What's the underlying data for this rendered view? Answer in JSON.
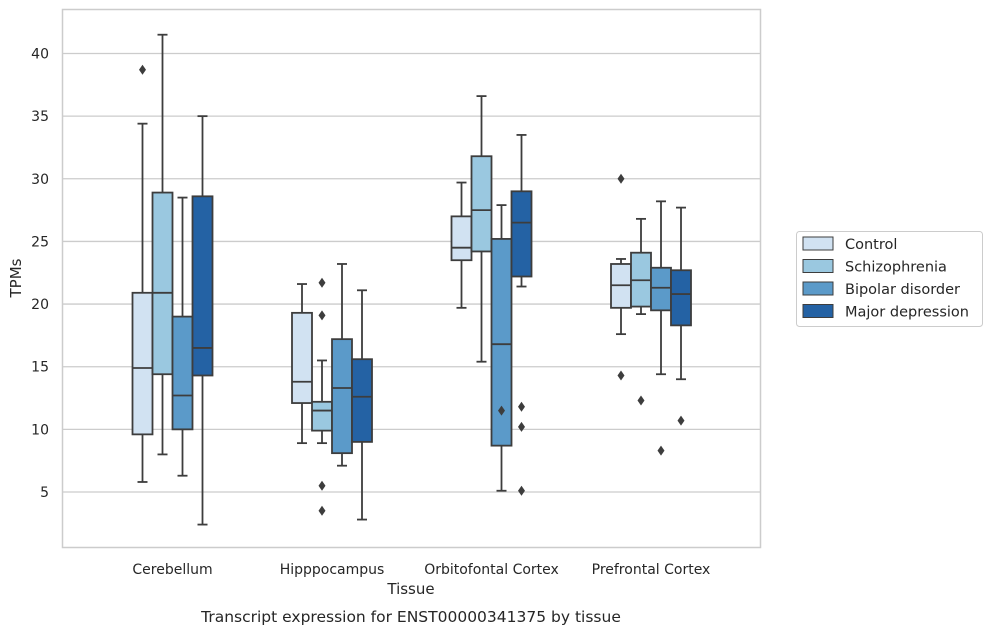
{
  "chart_data": {
    "type": "boxplot",
    "title": "",
    "caption": "Transcript expression for ENST00000341375 by tissue",
    "xlabel": "Tissue",
    "ylabel": "TPMs",
    "ylim": [
      0.5,
      43.5
    ],
    "yticks": [
      "5",
      "10",
      "15",
      "20",
      "25",
      "30",
      "35",
      "40"
    ],
    "grid": "horizontal",
    "legend_position": "right",
    "categories": [
      "Cerebellum",
      "Hipppocampus",
      "Orbitofontal Cortex",
      "Prefrontal Cortex"
    ],
    "series": [
      {
        "name": "Control",
        "color": "#d1e2f2",
        "boxes": [
          {
            "whislo": 5.8,
            "q1": 9.6,
            "med": 14.9,
            "q3": 20.9,
            "whishi": 34.4,
            "fliers": [
              38.7
            ]
          },
          {
            "whislo": 8.9,
            "q1": 12.1,
            "med": 13.8,
            "q3": 19.3,
            "whishi": 21.6,
            "fliers": []
          },
          {
            "whislo": 19.7,
            "q1": 23.5,
            "med": 24.5,
            "q3": 27.0,
            "whishi": 29.7,
            "fliers": []
          },
          {
            "whislo": 17.6,
            "q1": 19.7,
            "med": 21.5,
            "q3": 23.2,
            "whishi": 23.6,
            "fliers": [
              30.0,
              14.3
            ]
          }
        ]
      },
      {
        "name": "Schizophrenia",
        "color": "#9ac8e0",
        "boxes": [
          {
            "whislo": 8.0,
            "q1": 14.4,
            "med": 20.9,
            "q3": 28.9,
            "whishi": 41.5,
            "fliers": []
          },
          {
            "whislo": 8.9,
            "q1": 9.9,
            "med": 11.5,
            "q3": 12.2,
            "whishi": 15.5,
            "fliers": [
              21.7,
              19.1,
              5.5,
              3.5
            ]
          },
          {
            "whislo": 15.4,
            "q1": 24.2,
            "med": 27.5,
            "q3": 31.8,
            "whishi": 36.6,
            "fliers": []
          },
          {
            "whislo": 19.2,
            "q1": 19.8,
            "med": 21.9,
            "q3": 24.1,
            "whishi": 26.8,
            "fliers": [
              12.3
            ]
          }
        ]
      },
      {
        "name": "Bipolar disorder",
        "color": "#5b9ac9",
        "boxes": [
          {
            "whislo": 6.3,
            "q1": 10.0,
            "med": 12.7,
            "q3": 19.0,
            "whishi": 28.5,
            "fliers": []
          },
          {
            "whislo": 7.1,
            "q1": 8.1,
            "med": 13.3,
            "q3": 17.2,
            "whishi": 23.2,
            "fliers": []
          },
          {
            "whislo": 5.1,
            "q1": 8.7,
            "med": 16.8,
            "q3": 25.2,
            "whishi": 27.9,
            "fliers": [
              11.5
            ]
          },
          {
            "whislo": 14.4,
            "q1": 19.5,
            "med": 21.3,
            "q3": 22.9,
            "whishi": 28.2,
            "fliers": [
              8.3
            ]
          }
        ]
      },
      {
        "name": "Major depression",
        "color": "#2462a4",
        "boxes": [
          {
            "whislo": 2.4,
            "q1": 14.3,
            "med": 16.5,
            "q3": 28.6,
            "whishi": 35.0,
            "fliers": []
          },
          {
            "whislo": 2.8,
            "q1": 9.0,
            "med": 12.6,
            "q3": 15.6,
            "whishi": 21.1,
            "fliers": []
          },
          {
            "whislo": 21.4,
            "q1": 22.2,
            "med": 26.5,
            "q3": 29.0,
            "whishi": 33.5,
            "fliers": [
              11.8,
              10.2,
              5.1
            ]
          },
          {
            "whislo": 14.0,
            "q1": 18.3,
            "med": 20.8,
            "q3": 22.7,
            "whishi": 27.7,
            "fliers": [
              10.7
            ]
          }
        ]
      }
    ]
  }
}
